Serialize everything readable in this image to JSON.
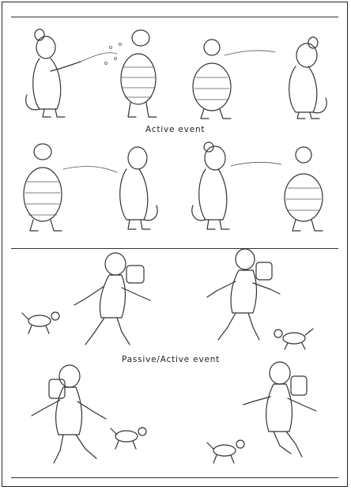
{
  "figure": {
    "sections": [
      {
        "caption": "Active event"
      },
      {
        "caption": "Passive/Active event"
      }
    ]
  }
}
